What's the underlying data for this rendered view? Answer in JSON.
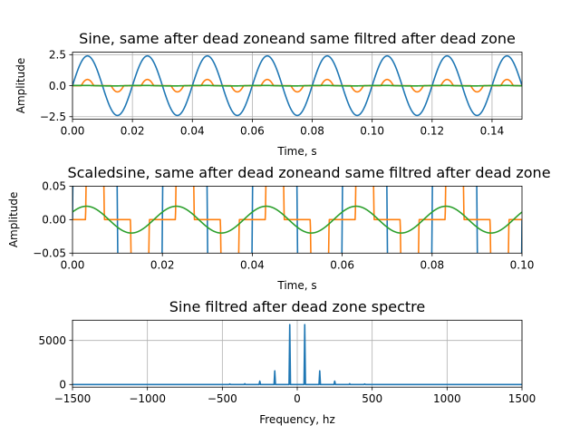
{
  "chart_data": [
    {
      "type": "line",
      "title": "Sine, same after dead zoneand same filtred after dead zone",
      "xlabel": "Time, s",
      "ylabel": "Amplitude",
      "xlim": [
        0,
        0.15
      ],
      "ylim": [
        -2.7,
        2.7
      ],
      "grid": true,
      "xticks": [
        0,
        0.02,
        0.04,
        0.06,
        0.08,
        0.1,
        0.12,
        0.14
      ],
      "xtick_labels": [
        "0.00",
        "0.02",
        "0.04",
        "0.06",
        "0.08",
        "0.10",
        "0.12",
        "0.14"
      ],
      "yticks": [
        2.5,
        0,
        -2.5
      ],
      "ytick_labels": [
        "2.5",
        "0.0",
        "−2.5"
      ],
      "series": [
        {
          "color": "#1f77b4",
          "kind": "sine",
          "amplitude": 2.4,
          "frequency_hz": 50
        },
        {
          "color": "#ff7f0e",
          "kind": "deadzone",
          "amplitude": 2.4,
          "frequency_hz": 50,
          "threshold": 1.9
        },
        {
          "color": "#2ca02c",
          "kind": "filtered",
          "amplitude": 0.02,
          "frequency_hz": 50
        }
      ]
    },
    {
      "type": "line",
      "title": "Scaledsine, same after dead zoneand same filtred after dead zone",
      "xlabel": "Time, s",
      "ylabel": "Amplitude",
      "xlim": [
        0,
        0.1
      ],
      "ylim": [
        -0.05,
        0.05
      ],
      "grid": false,
      "xticks": [
        0,
        0.02,
        0.04,
        0.06,
        0.08,
        0.1
      ],
      "xtick_labels": [
        "0.00",
        "0.02",
        "0.04",
        "0.06",
        "0.08",
        "0.10"
      ],
      "yticks": [
        0.05,
        0,
        -0.05
      ],
      "ytick_labels": [
        "0.05",
        "0.00",
        "−0.05"
      ],
      "series": [
        {
          "color": "#1f77b4",
          "kind": "sine",
          "amplitude": 2.4,
          "frequency_hz": 50
        },
        {
          "color": "#ff7f0e",
          "kind": "deadzone",
          "amplitude": 2.4,
          "frequency_hz": 50,
          "threshold": 1.9
        },
        {
          "color": "#2ca02c",
          "kind": "filtered",
          "amplitude": 0.02,
          "frequency_hz": 50
        }
      ]
    },
    {
      "type": "line",
      "title": "Sine filtred after dead zone spectre",
      "xlabel": "Frequency, hz",
      "ylabel": "",
      "xlim": [
        -1500,
        1500
      ],
      "ylim": [
        -300,
        7300
      ],
      "grid": true,
      "xticks": [
        -1500,
        -1000,
        -500,
        0,
        500,
        1000,
        1500
      ],
      "xtick_labels": [
        "−1500",
        "−1000",
        "−500",
        "0",
        "500",
        "1000",
        "1500"
      ],
      "yticks": [
        5000,
        0
      ],
      "ytick_labels": [
        "5000",
        "0"
      ],
      "series": [
        {
          "color": "#1f77b4",
          "peaks": [
            {
              "x": -450,
              "y": 60
            },
            {
              "x": -350,
              "y": 90
            },
            {
              "x": -250,
              "y": 380
            },
            {
              "x": -150,
              "y": 1550
            },
            {
              "x": -50,
              "y": 6800
            },
            {
              "x": 50,
              "y": 6800
            },
            {
              "x": 150,
              "y": 1550
            },
            {
              "x": 250,
              "y": 380
            },
            {
              "x": 350,
              "y": 90
            },
            {
              "x": 450,
              "y": 60
            }
          ]
        }
      ]
    }
  ]
}
